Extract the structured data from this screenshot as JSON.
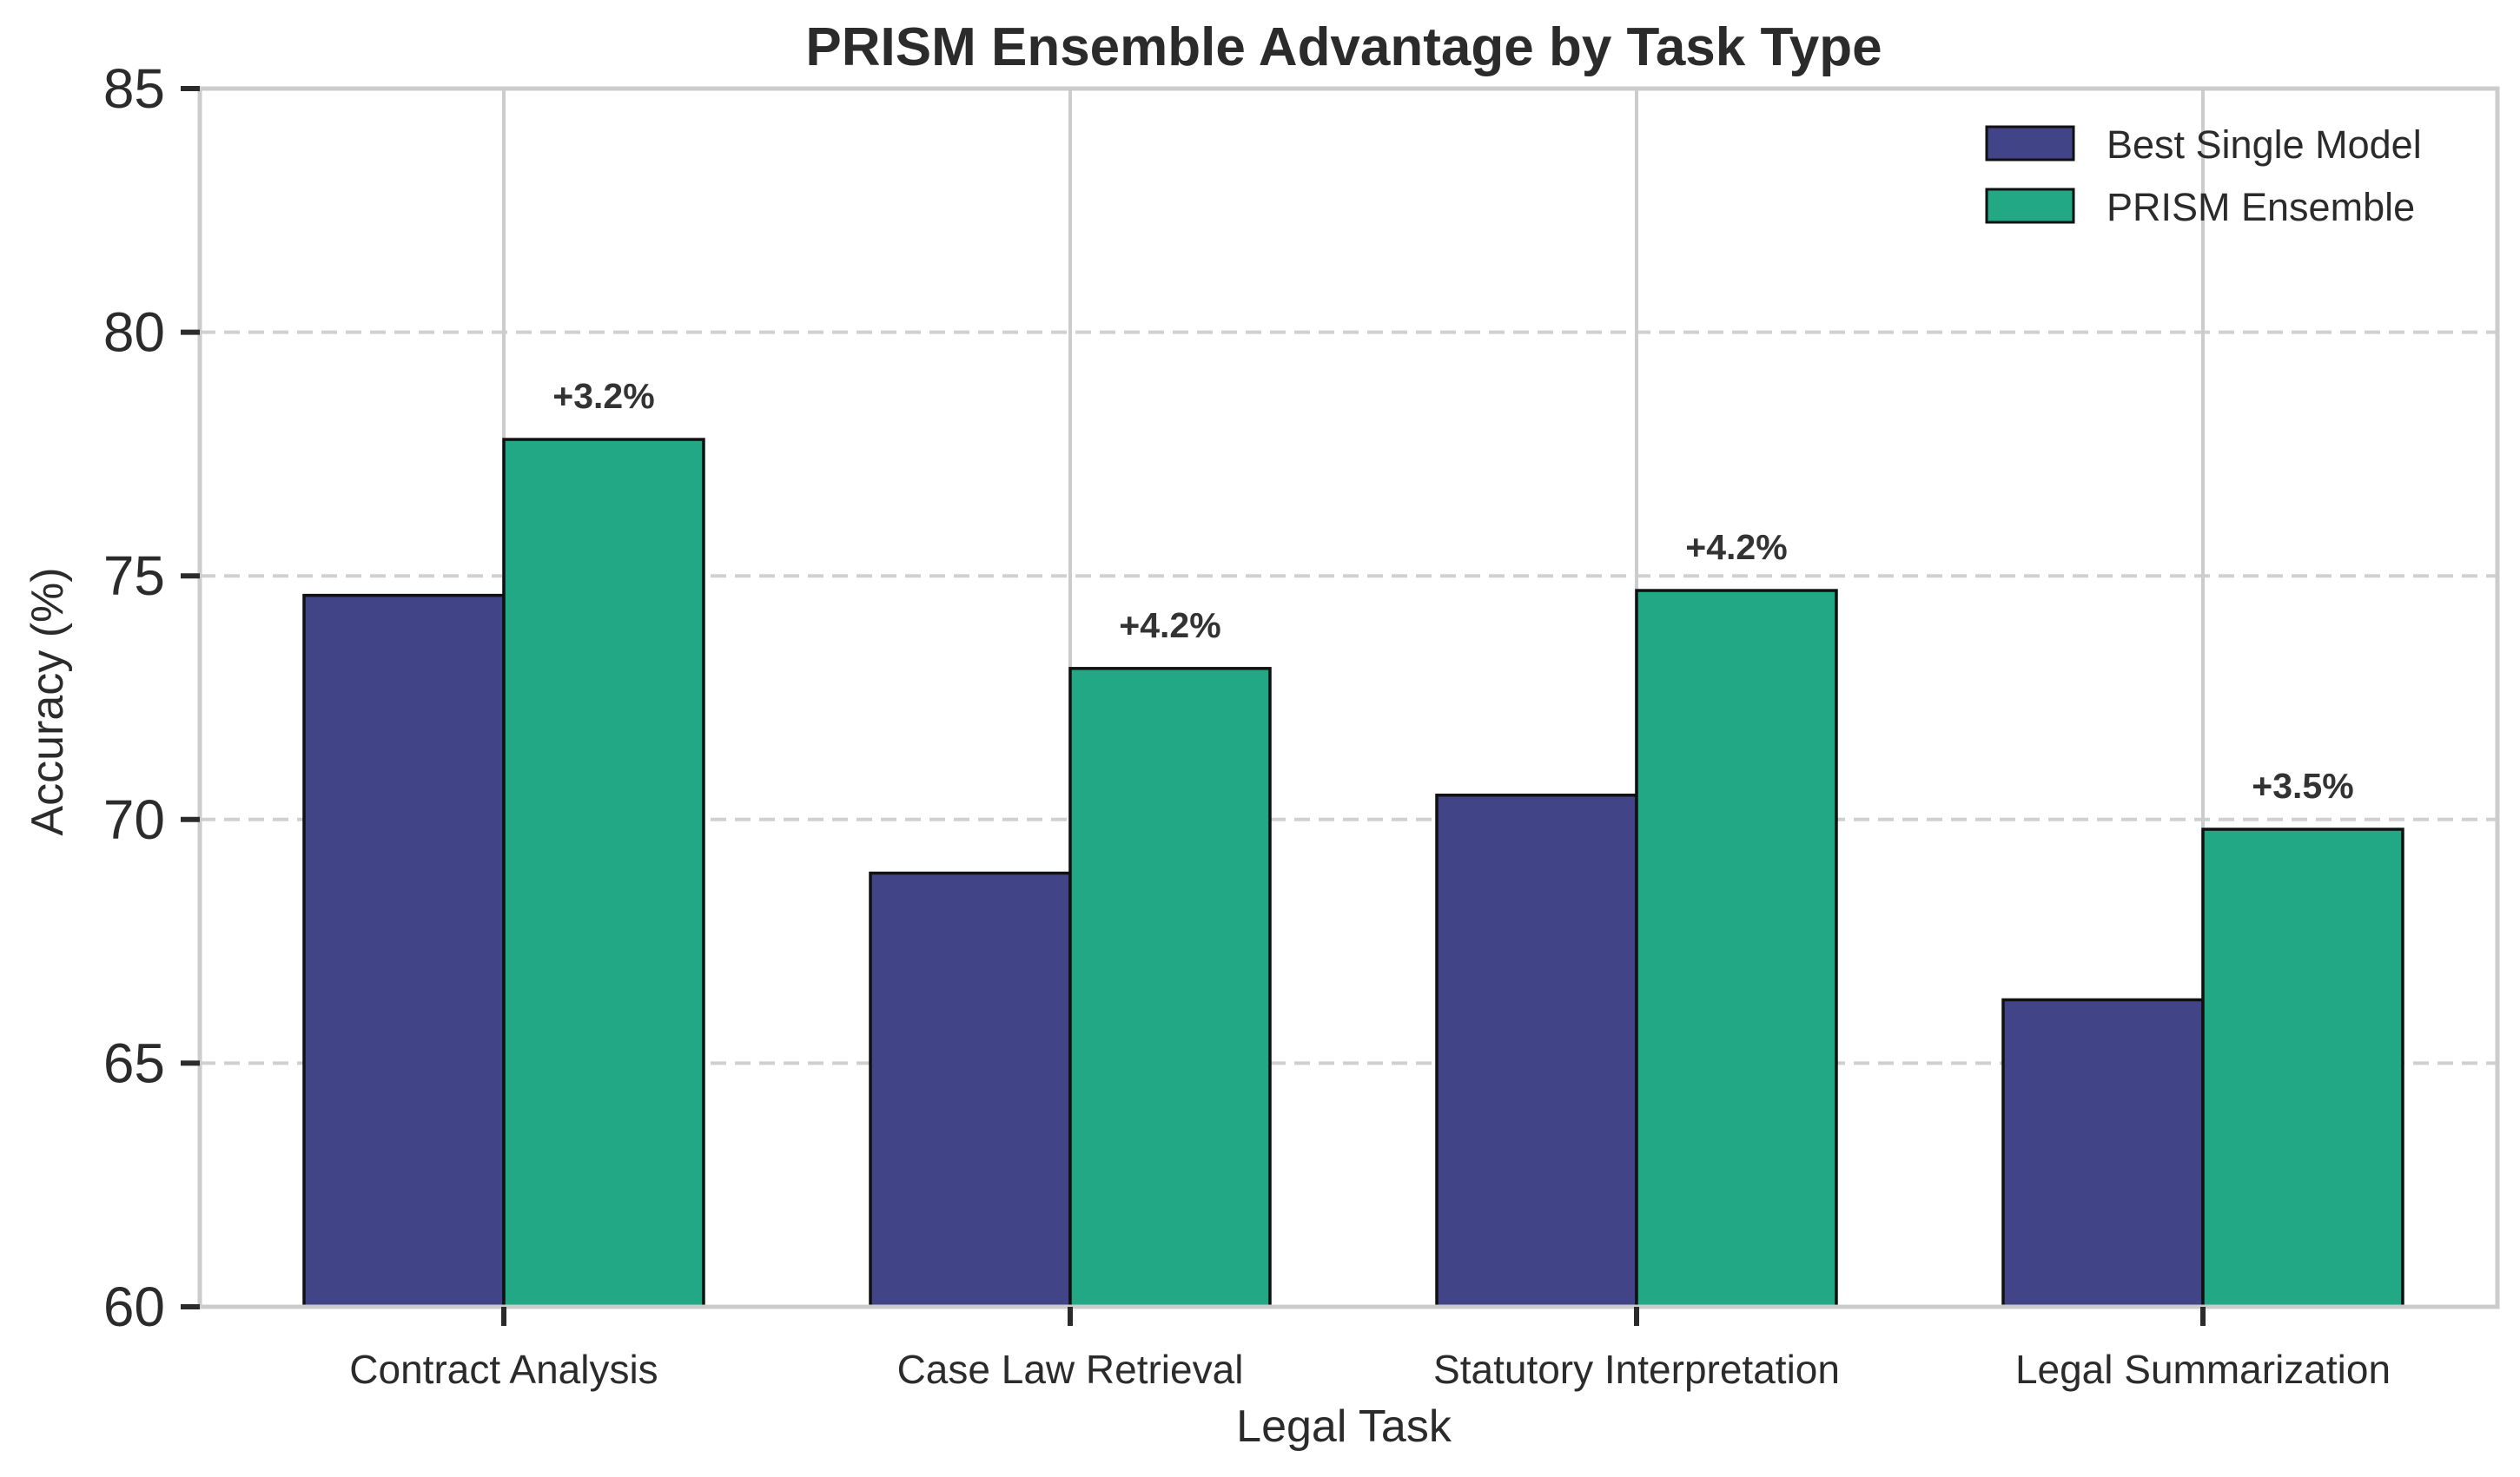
{
  "chart_data": {
    "type": "bar",
    "title": "PRISM Ensemble Advantage by Task Type",
    "xlabel": "Legal Task",
    "ylabel": "Accuracy (%)",
    "ylim": [
      60,
      85
    ],
    "yticks": [
      60,
      65,
      70,
      75,
      80,
      85
    ],
    "categories": [
      "Contract Analysis",
      "Case Law Retrieval",
      "Statutory Interpretation",
      "Legal Summarization"
    ],
    "series": [
      {
        "name": "Best Single Model",
        "color": "#414487",
        "values": [
          74.6,
          68.9,
          70.5,
          66.3
        ]
      },
      {
        "name": "PRISM Ensemble",
        "color": "#22a884",
        "values": [
          77.8,
          73.1,
          74.7,
          69.8
        ]
      }
    ],
    "annotations": [
      "+3.2%",
      "+4.2%",
      "+4.2%",
      "+3.5%"
    ],
    "grid": {
      "y": "dashed",
      "x": "solid"
    },
    "legend_position": "top-right"
  }
}
